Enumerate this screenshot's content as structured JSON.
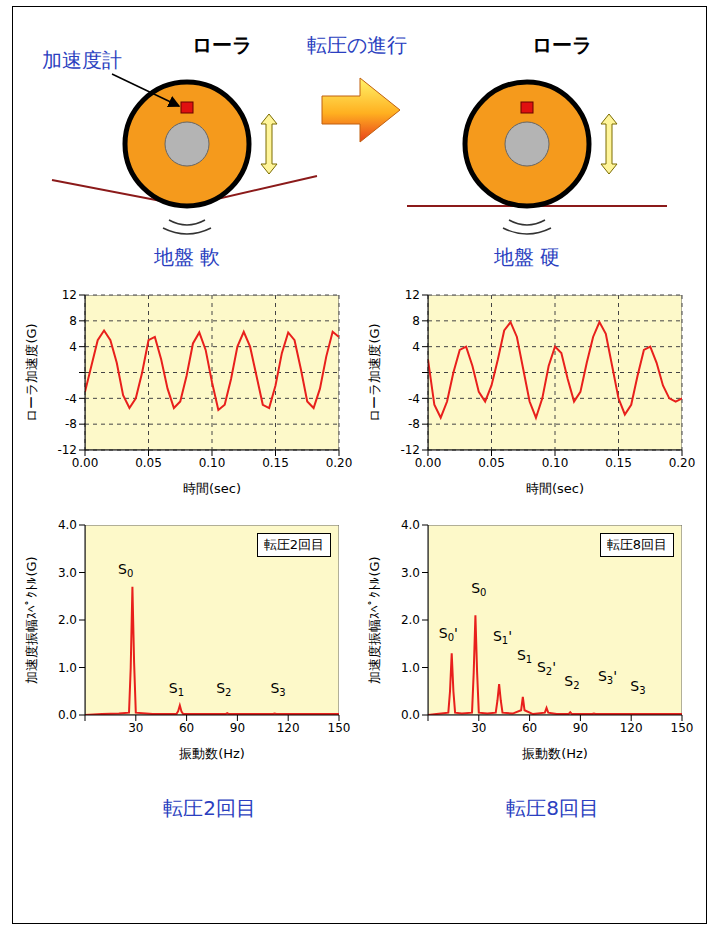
{
  "diagram": {
    "roller_left": "ローラ",
    "roller_right": "ローラ",
    "accelerometer": "加速度計",
    "progress": "転圧の進行",
    "ground_soft": "地盤 軟",
    "ground_hard": "地盤 硬"
  },
  "captions": [
    "転圧2回目",
    "転圧8回目"
  ],
  "chart_data": [
    {
      "type": "line",
      "color": "#e8201c",
      "grid": true,
      "x_label": "時間(sec)",
      "y_label": "ローラ加速度(G)",
      "xlim": [
        0,
        0.2
      ],
      "xticks": [
        {
          "value": 0,
          "label": "0.00"
        },
        {
          "value": 0.05,
          "label": "0.05"
        },
        {
          "value": 0.1,
          "label": "0.10"
        },
        {
          "value": 0.15,
          "label": "0.15"
        },
        {
          "value": 0.2,
          "label": "0.20"
        }
      ],
      "ylim": [
        -12,
        12
      ],
      "yticks": [
        -12,
        -8,
        -4,
        0,
        4,
        8,
        12
      ],
      "x": [
        0,
        0.005,
        0.01,
        0.015,
        0.02,
        0.025,
        0.03,
        0.035,
        0.04,
        0.045,
        0.05,
        0.055,
        0.06,
        0.065,
        0.07,
        0.075,
        0.08,
        0.085,
        0.09,
        0.095,
        0.1,
        0.105,
        0.11,
        0.115,
        0.12,
        0.125,
        0.13,
        0.135,
        0.14,
        0.145,
        0.15,
        0.155,
        0.16,
        0.165,
        0.17,
        0.175,
        0.18,
        0.185,
        0.19,
        0.195,
        0.2
      ],
      "values": [
        -3,
        1,
        5,
        6.5,
        5,
        1.5,
        -3.5,
        -5.5,
        -4,
        0,
        5,
        5.5,
        2,
        -2.5,
        -5.5,
        -4.5,
        -0.5,
        4.5,
        6.2,
        3.5,
        -1.5,
        -5.8,
        -5,
        -1,
        4,
        6.3,
        4,
        -0.5,
        -5,
        -5.5,
        -2,
        3,
        6.2,
        5,
        0.5,
        -4.5,
        -5.5,
        -2.5,
        2.5,
        6.3,
        5.5
      ]
    },
    {
      "type": "line",
      "color": "#e8201c",
      "grid": true,
      "x_label": "時間(sec)",
      "y_label": "ローラ加速度(G)",
      "xlim": [
        0,
        0.2
      ],
      "xticks": [
        {
          "value": 0,
          "label": "0.00"
        },
        {
          "value": 0.05,
          "label": "0.05"
        },
        {
          "value": 0.1,
          "label": "0.10"
        },
        {
          "value": 0.15,
          "label": "0.15"
        },
        {
          "value": 0.2,
          "label": "0.20"
        }
      ],
      "ylim": [
        -12,
        12
      ],
      "yticks": [
        -12,
        -8,
        -4,
        0,
        4,
        8,
        12
      ],
      "x": [
        0,
        0.005,
        0.01,
        0.015,
        0.02,
        0.025,
        0.03,
        0.035,
        0.04,
        0.045,
        0.05,
        0.055,
        0.06,
        0.065,
        0.07,
        0.075,
        0.08,
        0.085,
        0.09,
        0.095,
        0.1,
        0.105,
        0.11,
        0.115,
        0.12,
        0.125,
        0.13,
        0.135,
        0.14,
        0.145,
        0.15,
        0.155,
        0.16,
        0.165,
        0.17,
        0.175,
        0.18,
        0.185,
        0.19,
        0.195,
        0.2
      ],
      "values": [
        2,
        -5,
        -7,
        -4.5,
        0,
        3.5,
        4,
        1,
        -3,
        -4.5,
        -2,
        2,
        6.5,
        7.8,
        5.5,
        0.5,
        -4.5,
        -7,
        -4,
        1,
        4,
        3,
        -1,
        -4.5,
        -3,
        1.5,
        5.5,
        7.8,
        6,
        1,
        -4,
        -6.5,
        -5,
        -0.5,
        3.5,
        4,
        1.5,
        -2,
        -4,
        -4.5,
        -4
      ]
    },
    {
      "type": "line",
      "color": "#e8201c",
      "grid": false,
      "x_label": "振動数(Hz)",
      "y_label": "加速度振幅ｽﾍﾟｸﾄﾙ(G)",
      "panel_label": "転圧2回目",
      "xlim": [
        0,
        150
      ],
      "xticks": [
        0,
        30,
        60,
        90,
        120,
        150
      ],
      "ylim": [
        0,
        4
      ],
      "yticks": [
        {
          "value": 0,
          "label": "0.0"
        },
        {
          "value": 1,
          "label": "1.0"
        },
        {
          "value": 2,
          "label": "2.0"
        },
        {
          "value": 3,
          "label": "3.0"
        },
        {
          "value": 4,
          "label": "4.0"
        }
      ],
      "x": [
        0,
        10,
        20,
        26,
        27,
        28,
        29,
        30,
        40,
        54,
        55,
        56,
        57,
        58,
        70,
        83,
        84,
        85,
        100,
        111,
        112,
        113,
        130,
        150
      ],
      "values": [
        0,
        0.02,
        0.03,
        0.05,
        1.0,
        2.7,
        1.1,
        0.05,
        0.02,
        0.02,
        0.08,
        0.2,
        0.07,
        0.02,
        0.02,
        0.02,
        0.04,
        0.02,
        0.02,
        0.02,
        0.03,
        0.02,
        0.02,
        0.02
      ],
      "annotations": [
        {
          "text": "S0",
          "x": 24,
          "y": 3.05
        },
        {
          "text": "S1",
          "x": 54,
          "y": 0.55
        },
        {
          "text": "S2",
          "x": 82,
          "y": 0.55
        },
        {
          "text": "S3",
          "x": 114,
          "y": 0.55
        }
      ]
    },
    {
      "type": "line",
      "color": "#e8201c",
      "grid": false,
      "x_label": "振動数(Hz)",
      "y_label": "加速度振幅ｽﾍﾟｸﾄﾙ(G)",
      "panel_label": "転圧8回目",
      "xlim": [
        0,
        150
      ],
      "xticks": [
        0,
        30,
        60,
        90,
        120,
        150
      ],
      "ylim": [
        0,
        4
      ],
      "yticks": [
        {
          "value": 0,
          "label": "0.0"
        },
        {
          "value": 1,
          "label": "1.0"
        },
        {
          "value": 2,
          "label": "2.0"
        },
        {
          "value": 3,
          "label": "3.0"
        },
        {
          "value": 4,
          "label": "4.0"
        }
      ],
      "x": [
        0,
        5,
        12,
        13,
        14,
        15,
        16,
        20,
        26,
        27,
        28,
        29,
        30,
        35,
        40,
        41,
        42,
        43,
        44,
        50,
        55,
        56,
        57,
        62,
        69,
        70,
        71,
        76,
        83,
        84,
        85,
        90,
        97,
        98,
        99,
        112,
        126,
        150
      ],
      "values": [
        0,
        0.02,
        0.05,
        0.5,
        1.3,
        0.5,
        0.05,
        0.03,
        0.05,
        0.9,
        2.1,
        0.9,
        0.05,
        0.03,
        0.05,
        0.3,
        0.65,
        0.3,
        0.05,
        0.03,
        0.1,
        0.38,
        0.1,
        0.02,
        0.05,
        0.15,
        0.05,
        0.02,
        0.02,
        0.06,
        0.02,
        0.02,
        0.02,
        0.03,
        0.02,
        0.02,
        0.02,
        0.02
      ],
      "annotations": [
        {
          "text": "S0'",
          "x": 12,
          "y": 1.7
        },
        {
          "text": "S0",
          "x": 30,
          "y": 2.65
        },
        {
          "text": "S1'",
          "x": 44,
          "y": 1.65
        },
        {
          "text": "S1",
          "x": 57,
          "y": 1.25
        },
        {
          "text": "S2'",
          "x": 70,
          "y": 1.0
        },
        {
          "text": "S2",
          "x": 85,
          "y": 0.7
        },
        {
          "text": "S3'",
          "x": 106,
          "y": 0.8
        },
        {
          "text": "S3",
          "x": 124,
          "y": 0.6
        }
      ]
    }
  ]
}
